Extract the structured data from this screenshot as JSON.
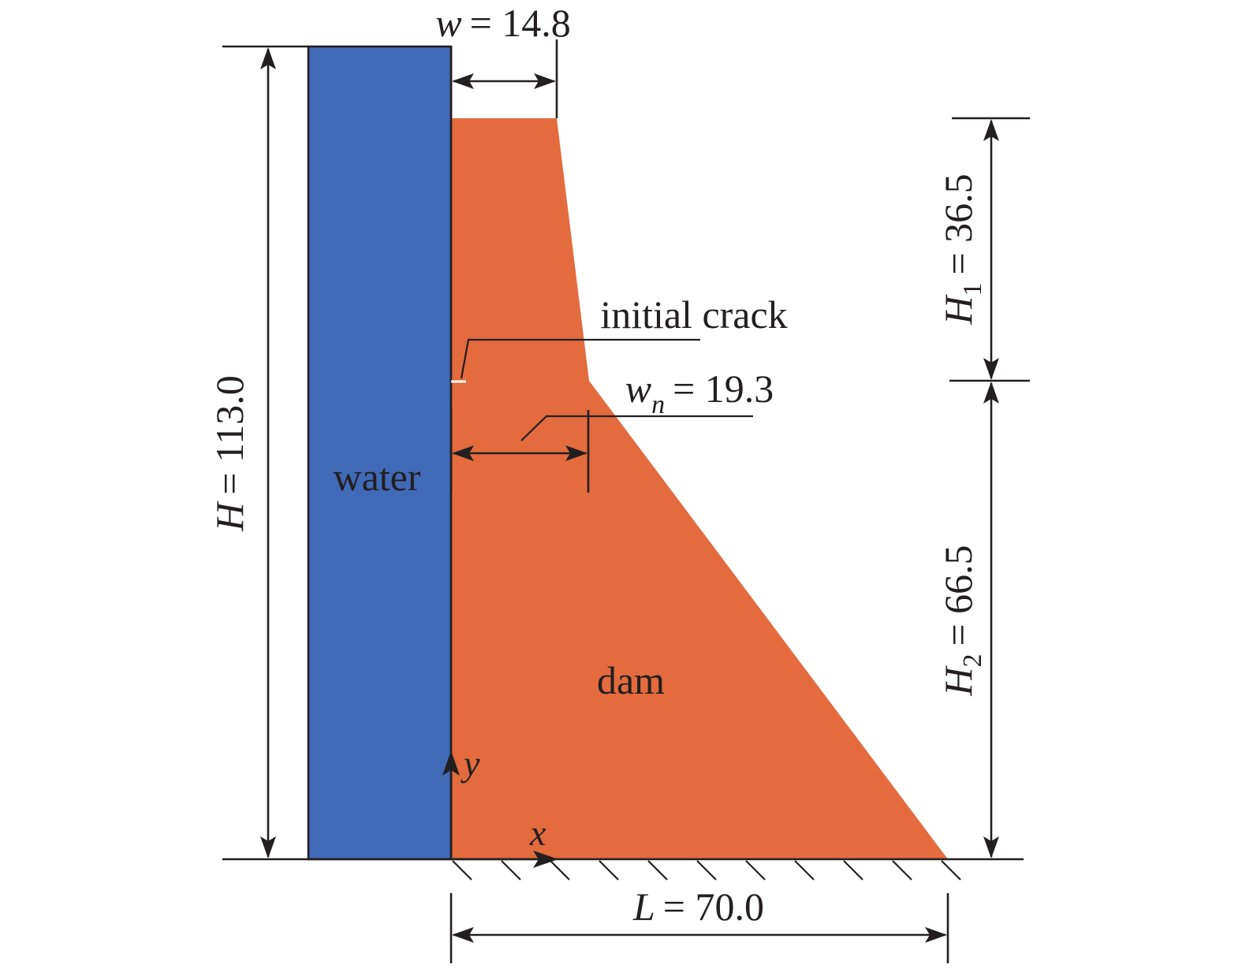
{
  "colors": {
    "water": "#406ab8",
    "dam": "#e36b3e",
    "ink": "#231f20",
    "white": "#ffffff"
  },
  "labels": {
    "water": "water",
    "dam": "dam",
    "initial_crack": "initial crack",
    "axis_x": "x",
    "axis_y": "y"
  },
  "dimensions": {
    "w": {
      "symbol": "w",
      "sub": "",
      "value": "= 14.8"
    },
    "wn": {
      "symbol": "w",
      "sub": "n",
      "value": "= 19.3"
    },
    "H": {
      "symbol": "H",
      "sub": "",
      "value": "= 113.0"
    },
    "H1": {
      "symbol": "H",
      "sub": "1",
      "value": "= 36.5"
    },
    "H2": {
      "symbol": "H",
      "sub": "2",
      "value": "= 66.5"
    },
    "L": {
      "symbol": "L",
      "sub": "",
      "value": "= 70.0"
    }
  },
  "icons": {
    "ground": "hatched-fixed-support-icon",
    "arrows": "dimension-arrow-icon"
  }
}
